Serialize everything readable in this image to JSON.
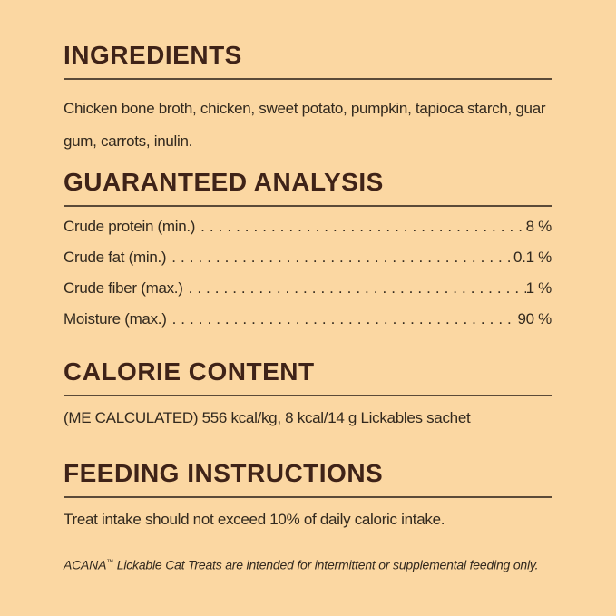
{
  "theme": {
    "background": "#fbd7a2",
    "heading_color": "#3f2318",
    "text_color": "#32291e",
    "rule_color": "#5b4a38"
  },
  "sections": {
    "ingredients": {
      "heading": "INGREDIENTS",
      "body": "Chicken bone broth, chicken, sweet potato, pumpkin, tapioca starch, guar gum, carrots, inulin."
    },
    "guaranteed_analysis": {
      "heading": "GUARANTEED ANALYSIS",
      "rows": [
        {
          "label": "Crude protein (min.)",
          "value": "8 %"
        },
        {
          "label": "Crude fat (min.)",
          "value": "0.1 %"
        },
        {
          "label": "Crude fiber (max.)",
          "value": "1 %"
        },
        {
          "label": "Moisture (max.)",
          "value": "90 %"
        }
      ]
    },
    "calorie_content": {
      "heading": "CALORIE CONTENT",
      "body": "(ME CALCULATED) 556 kcal/kg, 8 kcal/14 g Lickables sachet"
    },
    "feeding_instructions": {
      "heading": "FEEDING INSTRUCTIONS",
      "body": "Treat intake should not exceed 10% of daily caloric intake."
    },
    "footnote": {
      "brand": "ACANA",
      "trademark": "™",
      "rest": " Lickable Cat Treats are intended for intermittent or supplemental feeding only."
    }
  }
}
